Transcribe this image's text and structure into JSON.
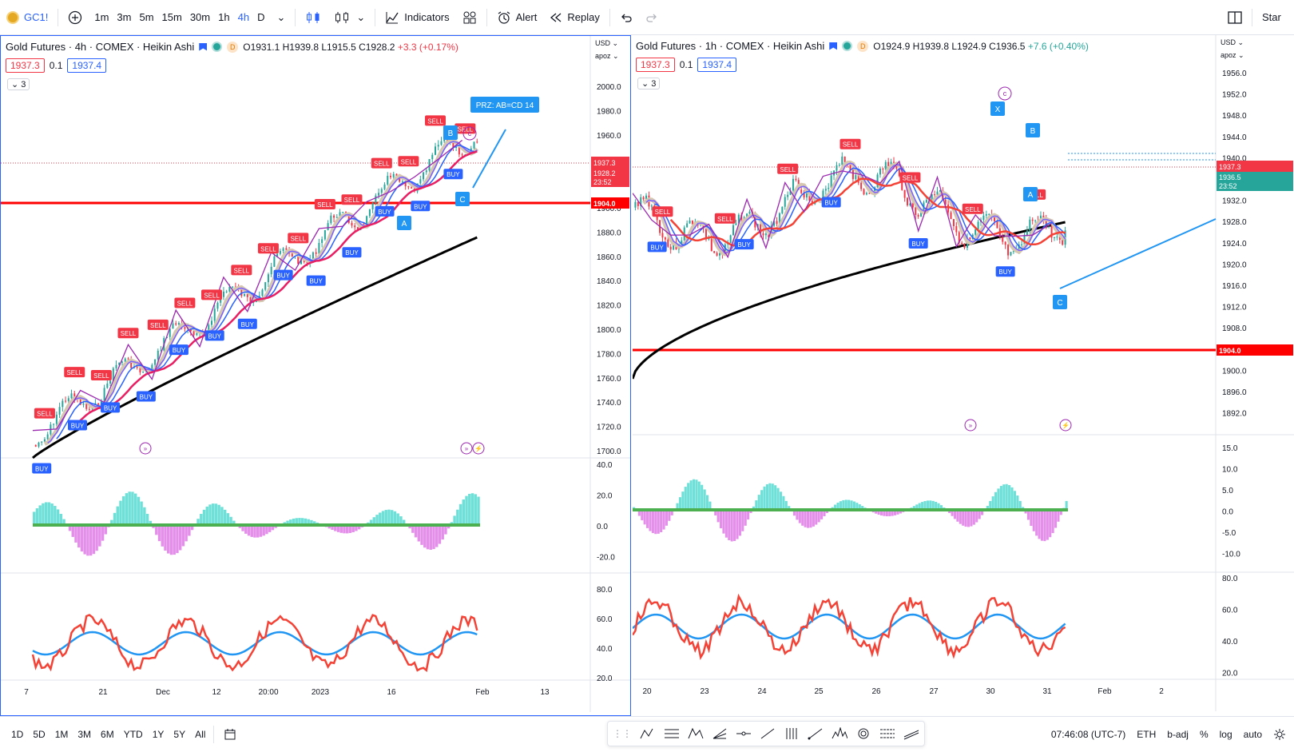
{
  "toolbar": {
    "symbol": "GC1!",
    "timeframes": [
      "1m",
      "3m",
      "5m",
      "15m",
      "30m",
      "1h",
      "4h",
      "D"
    ],
    "active_timeframe": "4h",
    "indicators_label": "Indicators",
    "alert_label": "Alert",
    "replay_label": "Replay",
    "right_label": "Star"
  },
  "left_chart": {
    "title": "Gold Futures · 4h · COMEX · Heikin Ashi",
    "ohlc": {
      "o": "O1931.1",
      "h": "H1939.8",
      "l": "L1915.5",
      "c": "C1928.2",
      "chg": "+3.3 (+0.17%)"
    },
    "bid": "1937.3",
    "step": "0.1",
    "ask": "1937.4",
    "collapse_count": "3",
    "currency": "USD",
    "scale_mode": "apoz",
    "price_ticks": [
      "2000.0",
      "1980.0",
      "1960.0",
      "1940.0",
      "1920.0",
      "1900.0",
      "1880.0",
      "1860.0",
      "1840.0",
      "1820.0",
      "1800.0",
      "1780.0",
      "1760.0",
      "1740.0",
      "1720.0",
      "1700.0"
    ],
    "price_labels": {
      "last": "1937.3",
      "close": "1928.2",
      "countdown": "23:52",
      "level": "1904.0"
    },
    "osc_ticks": [
      "40.0",
      "20.0",
      "0.0",
      "-20.0"
    ],
    "rsi_ticks": [
      "80.0",
      "60.0",
      "40.0",
      "20.0"
    ],
    "time_ticks": [
      "7",
      "21",
      "Dec",
      "12",
      "20:00",
      "2023",
      "16",
      "Feb",
      "13"
    ],
    "prz_label": "PRZ: AB=CD 14",
    "pattern_labels": [
      "A",
      "B",
      "C",
      "C"
    ],
    "signals_sell": [
      "SELL",
      "SELL",
      "SELL",
      "SELL",
      "SELL",
      "SELL",
      "SELL",
      "SELL",
      "SELL",
      "SELL",
      "SELL",
      "SELL",
      "SELL",
      "SELL",
      "SELL",
      "SELL"
    ],
    "signals_buy": [
      "BUY",
      "BUY",
      "BUY",
      "BUY",
      "BUY",
      "BUY",
      "BUY",
      "BUY",
      "BUY",
      "BUY",
      "BUY",
      "BUY",
      "BUY"
    ]
  },
  "right_chart": {
    "title": "Gold Futures · 1h · COMEX · Heikin Ashi",
    "ohlc": {
      "o": "O1924.9",
      "h": "H1939.8",
      "l": "L1924.9",
      "c": "C1936.5",
      "chg": "+7.6 (+0.40%)"
    },
    "bid": "1937.3",
    "step": "0.1",
    "ask": "1937.4",
    "collapse_count": "3",
    "currency": "USD",
    "scale_mode": "apoz",
    "price_ticks": [
      "1956.0",
      "1952.0",
      "1948.0",
      "1944.0",
      "1940.0",
      "1936.0",
      "1932.0",
      "1928.0",
      "1924.0",
      "1920.0",
      "1916.0",
      "1912.0",
      "1908.0",
      "1904.0",
      "1900.0",
      "1896.0",
      "1892.0"
    ],
    "price_labels": {
      "last": "1937.3",
      "close": "1936.5",
      "countdown": "23:52",
      "level": "1904.0"
    },
    "osc_ticks": [
      "15.0",
      "10.0",
      "5.0",
      "0.0",
      "-5.0",
      "-10.0"
    ],
    "rsi_ticks": [
      "80.0",
      "60.0",
      "40.0",
      "20.0"
    ],
    "time_ticks": [
      "20",
      "23",
      "24",
      "25",
      "26",
      "27",
      "30",
      "31",
      "Feb",
      "2"
    ],
    "pattern_labels": [
      "X",
      "A",
      "B",
      "C",
      "C"
    ],
    "signals_sell": [
      "SELL",
      "SELL",
      "SELL",
      "SELL",
      "SELL",
      "SELL",
      "SELL"
    ],
    "signals_buy": [
      "BUY",
      "BUY",
      "BUY",
      "BUY",
      "BUY"
    ]
  },
  "bottom": {
    "ranges": [
      "1D",
      "5D",
      "1M",
      "3M",
      "6M",
      "YTD",
      "1Y",
      "5Y",
      "All"
    ],
    "clock": "07:46:08 (UTC-7)",
    "session": "ETH",
    "adj": "b-adj",
    "percent": "%",
    "log": "log",
    "auto": "auto"
  },
  "colors": {
    "accent": "#2962ff",
    "sell": "#f23645",
    "buy": "#2962ff",
    "level": "#ff0000",
    "ma200": "#000000"
  }
}
